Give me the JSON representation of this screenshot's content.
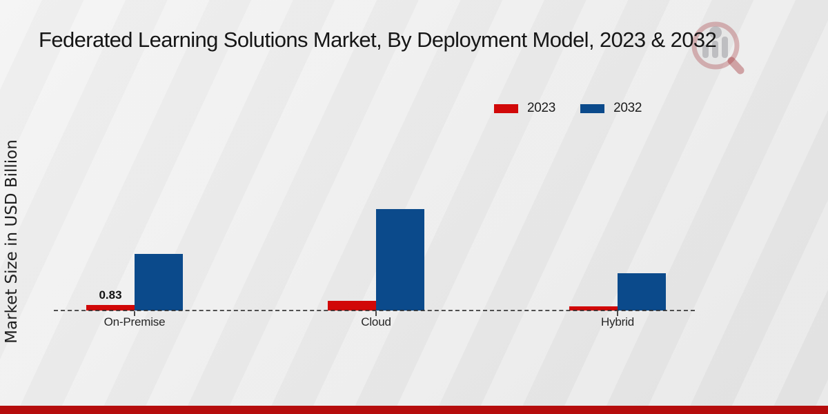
{
  "header": {
    "title": "Federated Learning Solutions Market, By Deployment Model, 2023 & 2032"
  },
  "axes": {
    "y_label": "Market Size in USD Billion"
  },
  "legend": {
    "items": [
      {
        "label": "2023",
        "color": "#d10808"
      },
      {
        "label": "2032",
        "color": "#0b4a8b"
      }
    ]
  },
  "colors": {
    "bar_2023": "#d10808",
    "bar_2032": "#0b4a8b",
    "footer_bar": "#b50d0d",
    "baseline": "#232323",
    "watermark_ring": "#9e282d",
    "watermark_gray": "#96969c"
  },
  "watermark": {
    "icon": "magnifier-bar-chart-logo"
  },
  "chart_data": {
    "type": "bar",
    "title": "Federated Learning Solutions Market, By Deployment Model, 2023 & 2032",
    "xlabel": "",
    "ylabel": "Market Size in USD Billion",
    "categories": [
      "On-Premise",
      "Cloud",
      "Hybrid"
    ],
    "series": [
      {
        "name": "2023",
        "color": "#d10808",
        "values": [
          0.83,
          1.45,
          0.65
        ]
      },
      {
        "name": "2032",
        "color": "#0b4a8b",
        "values": [
          8.5,
          15.25,
          5.6
        ]
      }
    ],
    "ylim": [
      0,
      16
    ],
    "grid": false,
    "legend_position": "top-right",
    "baseline_style": "dashed",
    "value_labels": [
      {
        "series": "2023",
        "category": "On-Premise",
        "text": "0.83"
      }
    ]
  }
}
